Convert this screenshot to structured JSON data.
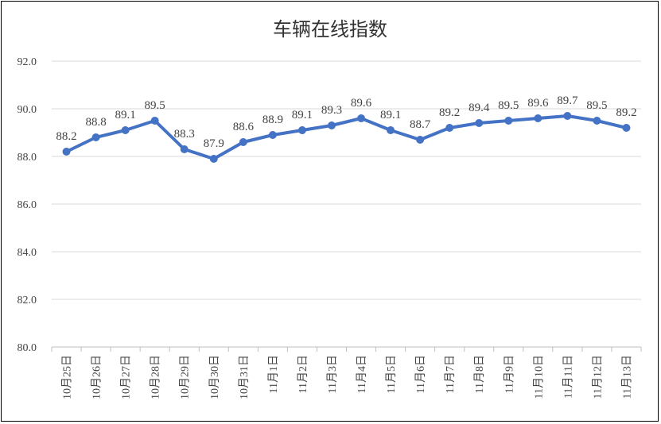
{
  "chart_data": {
    "type": "line",
    "title": "车辆在线指数",
    "xlabel": "",
    "ylabel": "",
    "ylim": [
      80.0,
      92.0
    ],
    "yticks": [
      "80.0",
      "82.0",
      "84.0",
      "86.0",
      "88.0",
      "90.0",
      "92.0"
    ],
    "grid": true,
    "legend": "none",
    "categories": [
      "10月25日",
      "10月26日",
      "10月27日",
      "10月28日",
      "10月29日",
      "10月30日",
      "10月31日",
      "11月1日",
      "11月2日",
      "11月3日",
      "11月4日",
      "11月5日",
      "11月6日",
      "11月7日",
      "11月8日",
      "11月9日",
      "11月10日",
      "11月11日",
      "11月12日",
      "11月13日"
    ],
    "series": [
      {
        "values": [
          88.2,
          88.8,
          89.1,
          89.5,
          88.3,
          87.9,
          88.6,
          88.9,
          89.1,
          89.3,
          89.6,
          89.1,
          88.7,
          89.2,
          89.4,
          89.5,
          89.6,
          89.7,
          89.5,
          89.2
        ],
        "labels": [
          "88.2",
          "88.8",
          "89.1",
          "89.5",
          "88.3",
          "87.9",
          "88.6",
          "88.9",
          "89.1",
          "89.3",
          "89.6",
          "89.1",
          "88.7",
          "89.2",
          "89.4",
          "89.5",
          "89.6",
          "89.7",
          "89.5",
          "89.2"
        ],
        "color": "#4472c4"
      }
    ]
  }
}
